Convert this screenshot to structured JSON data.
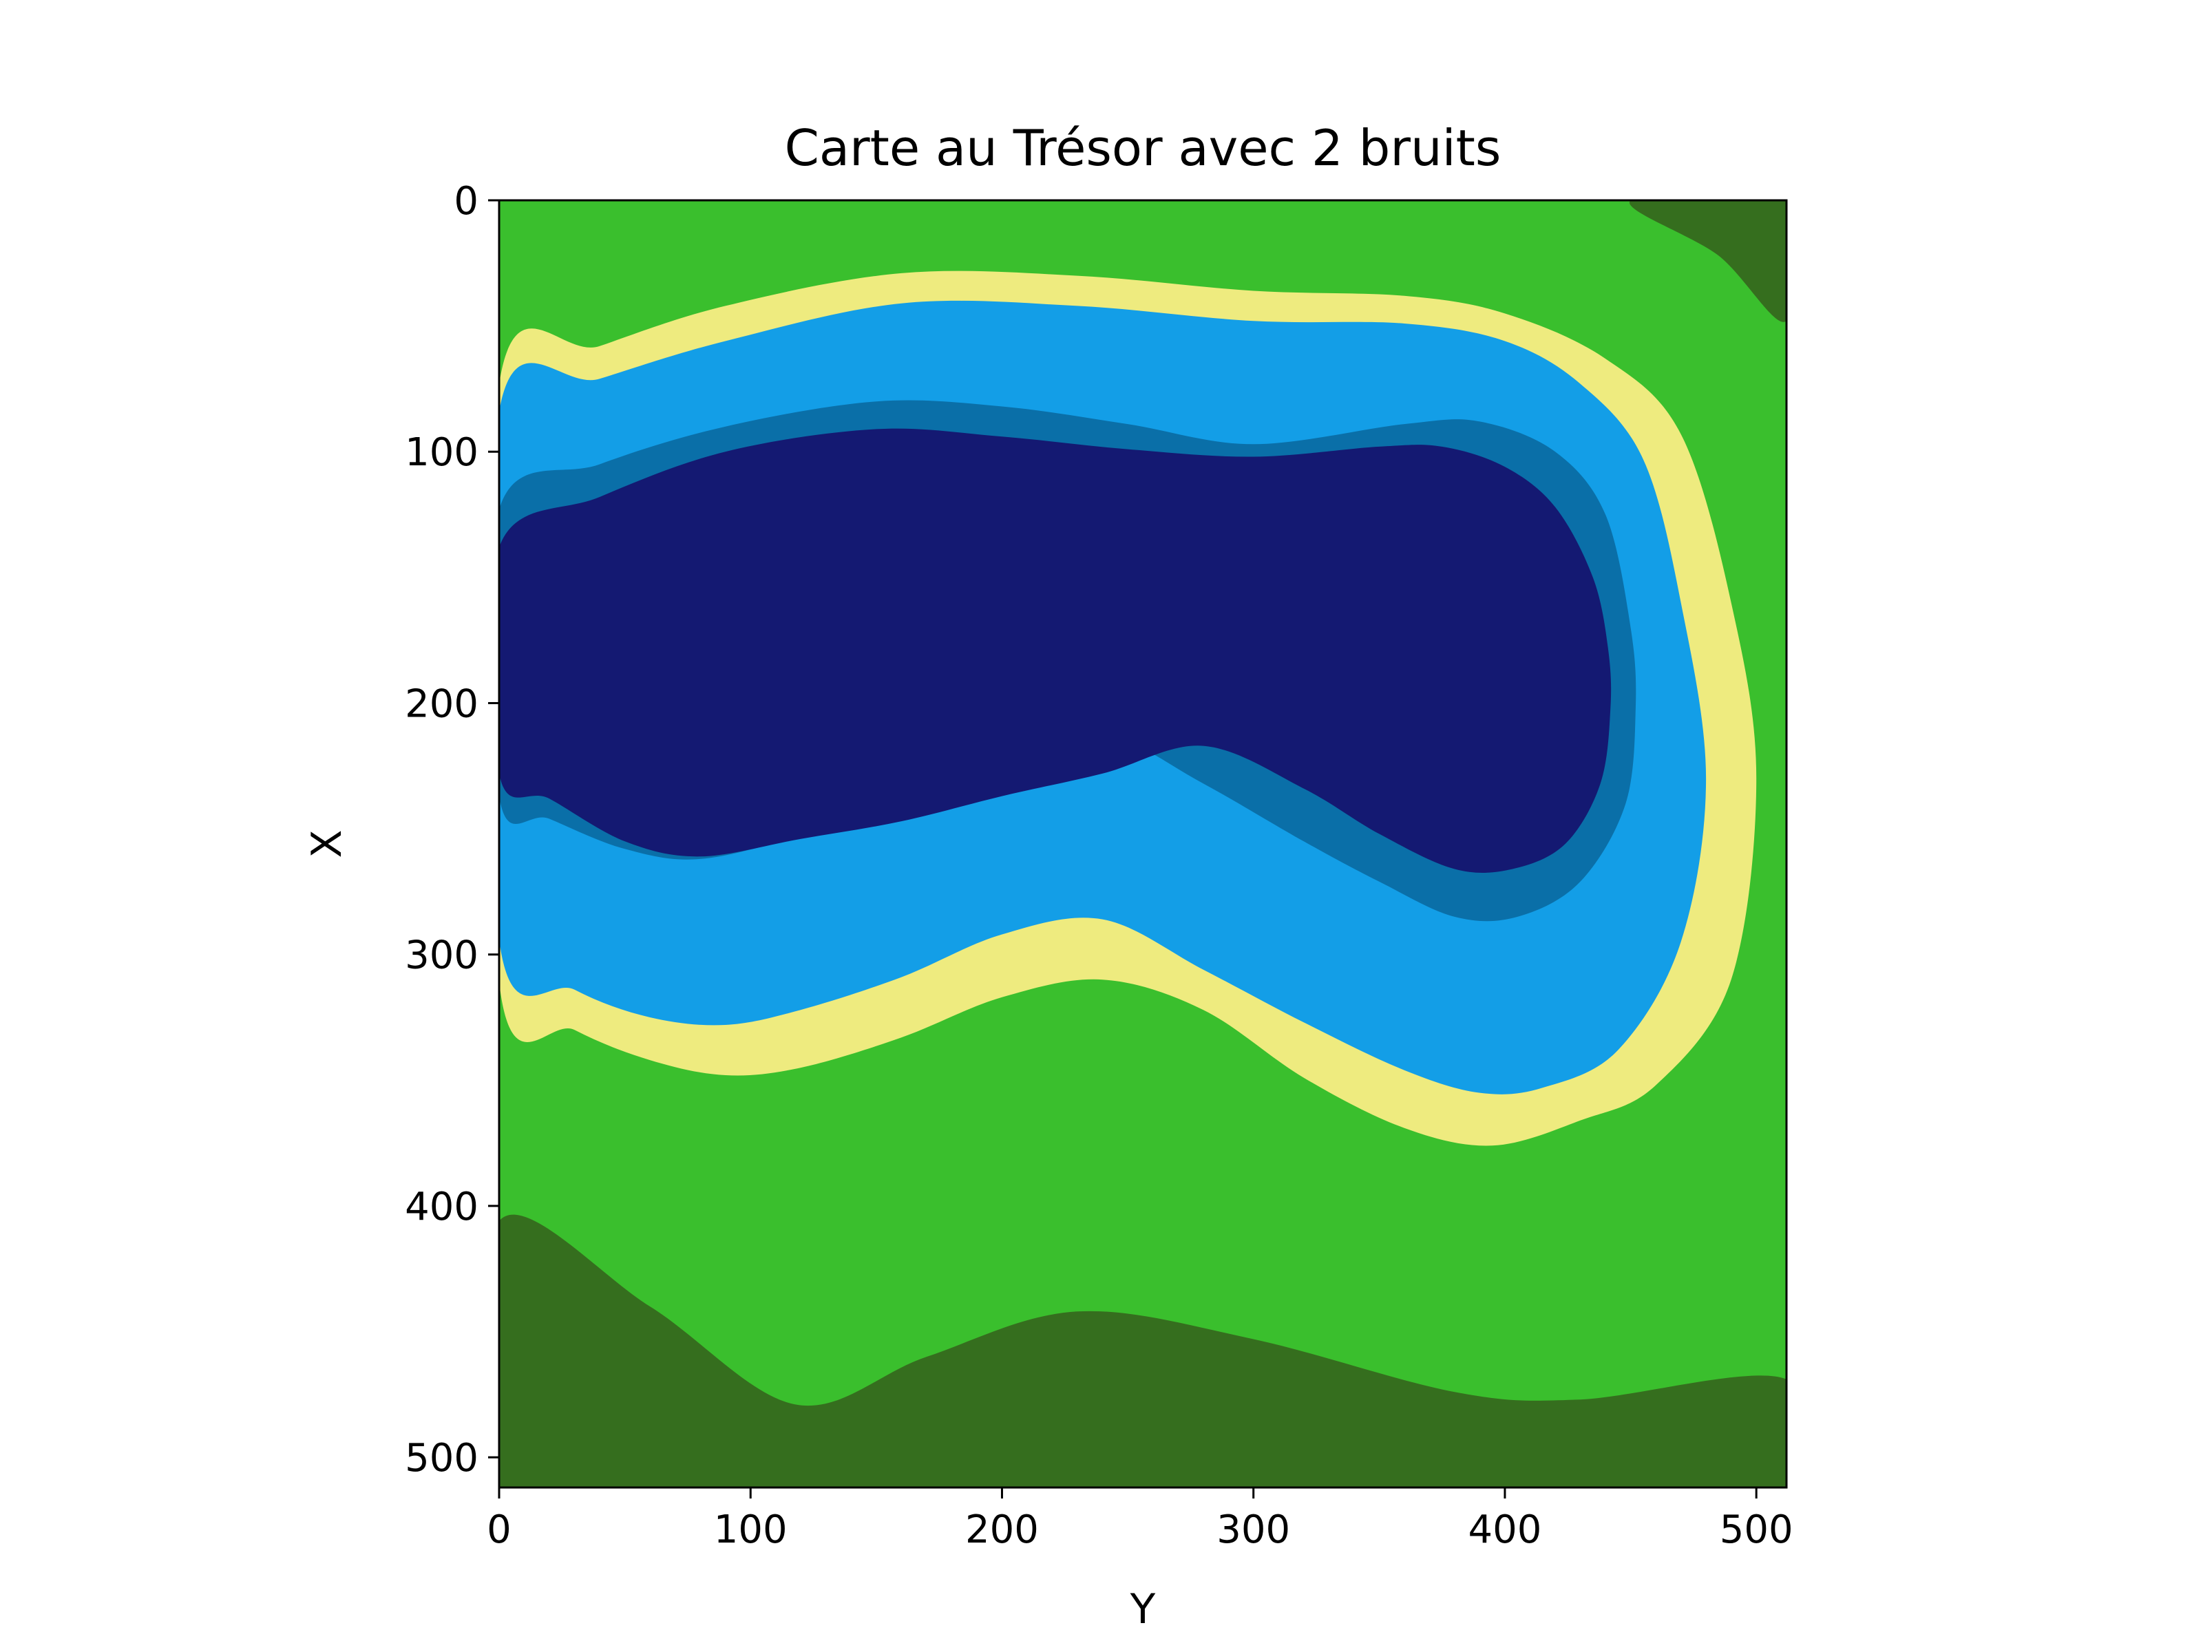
{
  "chart_data": {
    "type": "heatmap",
    "title": "Carte au Trésor avec 2 bruits",
    "xlabel": "Y",
    "ylabel": "X",
    "xlim": [
      0,
      512
    ],
    "ylim": [
      512,
      0
    ],
    "x_ticks": [
      0,
      100,
      200,
      300,
      400,
      500
    ],
    "y_ticks": [
      0,
      100,
      200,
      300,
      400,
      500
    ],
    "grid": false,
    "colors": {
      "dark_green": "#356e1e",
      "green": "#3abf2d",
      "sand": "#eeeb7f",
      "light_blue": "#139ee7",
      "medium_blue": "#0a6fa8",
      "dark_blue": "#141972"
    },
    "regions": [
      {
        "name": "dark-green-bottom",
        "color": "#356e1e",
        "boundary": [
          [
            0,
            406
          ],
          [
            60,
            440
          ],
          [
            118,
            479
          ],
          [
            170,
            460
          ],
          [
            230,
            442
          ],
          [
            300,
            453
          ],
          [
            380,
            474
          ],
          [
            430,
            477
          ],
          [
            512,
            469
          ],
          [
            512,
            512
          ],
          [
            0,
            512
          ]
        ]
      },
      {
        "name": "dark-green-top-right",
        "color": "#356e1e",
        "boundary": [
          [
            450,
            0
          ],
          [
            512,
            0
          ],
          [
            512,
            48
          ],
          [
            485,
            22
          ]
        ]
      },
      {
        "name": "sand-band",
        "color": "#eeeb7f",
        "boundary": [
          [
            0,
            73
          ],
          [
            40,
            58
          ],
          [
            90,
            42
          ],
          [
            160,
            29
          ],
          [
            230,
            30
          ],
          [
            300,
            36
          ],
          [
            360,
            38
          ],
          [
            400,
            45
          ],
          [
            440,
            63
          ],
          [
            470,
            93
          ],
          [
            490,
            160
          ],
          [
            500,
            230
          ],
          [
            490,
            310
          ],
          [
            460,
            352
          ],
          [
            430,
            366
          ],
          [
            395,
            376
          ],
          [
            360,
            369
          ],
          [
            320,
            349
          ],
          [
            280,
            322
          ],
          [
            240,
            310
          ],
          [
            200,
            317
          ],
          [
            160,
            333
          ],
          [
            120,
            345
          ],
          [
            90,
            348
          ],
          [
            60,
            342
          ],
          [
            30,
            330
          ],
          [
            0,
            311
          ]
        ]
      },
      {
        "name": "light-blue-band",
        "color": "#139ee7",
        "boundary": [
          [
            0,
            84
          ],
          [
            40,
            71
          ],
          [
            90,
            56
          ],
          [
            160,
            41
          ],
          [
            230,
            42
          ],
          [
            300,
            48
          ],
          [
            360,
            49
          ],
          [
            400,
            56
          ],
          [
            430,
            73
          ],
          [
            455,
            103
          ],
          [
            470,
            160
          ],
          [
            480,
            230
          ],
          [
            470,
            295
          ],
          [
            445,
            338
          ],
          [
            415,
            353
          ],
          [
            390,
            355
          ],
          [
            360,
            346
          ],
          [
            320,
            327
          ],
          [
            280,
            306
          ],
          [
            240,
            286
          ],
          [
            200,
            292
          ],
          [
            160,
            309
          ],
          [
            120,
            322
          ],
          [
            90,
            328
          ],
          [
            60,
            325
          ],
          [
            30,
            314
          ],
          [
            0,
            294
          ]
        ]
      },
      {
        "name": "medium-blue-band",
        "color": "#0a6fa8",
        "boundary": [
          [
            0,
            123
          ],
          [
            40,
            105
          ],
          [
            90,
            90
          ],
          [
            150,
            80
          ],
          [
            200,
            82
          ],
          [
            250,
            89
          ],
          [
            300,
            97
          ],
          [
            360,
            89
          ],
          [
            390,
            88
          ],
          [
            420,
            100
          ],
          [
            440,
            125
          ],
          [
            450,
            170
          ],
          [
            452,
            202
          ],
          [
            448,
            240
          ],
          [
            430,
            271
          ],
          [
            405,
            285
          ],
          [
            380,
            285
          ],
          [
            350,
            271
          ],
          [
            320,
            255
          ],
          [
            280,
            232
          ],
          [
            240,
            212
          ],
          [
            200,
            218
          ],
          [
            160,
            234
          ],
          [
            120,
            252
          ],
          [
            80,
            262
          ],
          [
            50,
            258
          ],
          [
            20,
            246
          ],
          [
            0,
            237
          ]
        ]
      },
      {
        "name": "dark-blue-core",
        "color": "#141972",
        "boundary": [
          [
            0,
            138
          ],
          [
            40,
            118
          ],
          [
            90,
            100
          ],
          [
            150,
            91
          ],
          [
            200,
            94
          ],
          [
            250,
            99
          ],
          [
            300,
            102
          ],
          [
            350,
            98
          ],
          [
            375,
            98
          ],
          [
            400,
            106
          ],
          [
            420,
            122
          ],
          [
            435,
            150
          ],
          [
            441,
            178
          ],
          [
            442,
            202
          ],
          [
            438,
            232
          ],
          [
            424,
            256
          ],
          [
            403,
            266
          ],
          [
            380,
            266
          ],
          [
            350,
            252
          ],
          [
            320,
            234
          ],
          [
            280,
            217
          ],
          [
            240,
            228
          ],
          [
            200,
            237
          ],
          [
            160,
            247
          ],
          [
            120,
            254
          ],
          [
            80,
            261
          ],
          [
            50,
            255
          ],
          [
            20,
            238
          ],
          [
            0,
            228
          ]
        ]
      }
    ]
  }
}
